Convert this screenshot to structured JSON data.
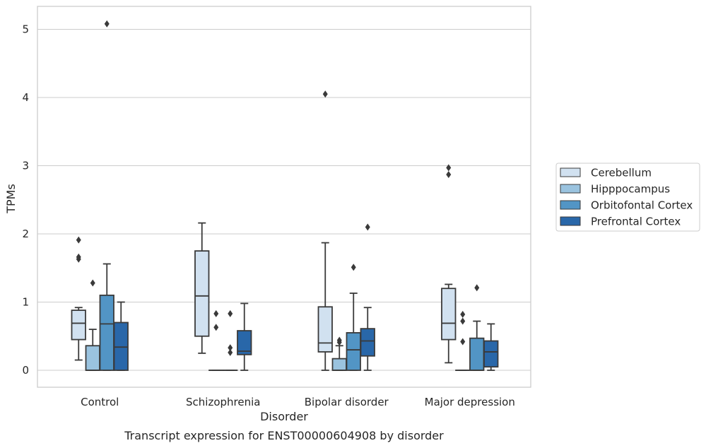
{
  "chart_data": {
    "type": "box",
    "title": "",
    "caption": "Transcript expression for ENST00000604908 by disorder",
    "xlabel": "Disorder",
    "ylabel": "TPMs",
    "ylim": [
      -0.25,
      5.35
    ],
    "yticks": [
      0,
      1,
      2,
      3,
      4,
      5
    ],
    "grid": "horizontal",
    "legend_position": "right",
    "categories": [
      "Control",
      "Schizophrenia",
      "Bipolar disorder",
      "Major depression"
    ],
    "series": [
      {
        "name": "Cerebellum",
        "color": "#d1e1f0",
        "boxes": [
          {
            "whislo": 0.15,
            "q1": 0.45,
            "med": 0.69,
            "q3": 0.88,
            "whishi": 0.92,
            "fliers": [
              1.63,
              1.66,
              1.91
            ]
          },
          {
            "whislo": 0.25,
            "q1": 0.5,
            "med": 1.09,
            "q3": 1.75,
            "whishi": 2.16,
            "fliers": []
          },
          {
            "whislo": 0.0,
            "q1": 0.27,
            "med": 0.4,
            "q3": 0.93,
            "whishi": 1.87,
            "fliers": [
              4.05
            ]
          },
          {
            "whislo": 0.11,
            "q1": 0.45,
            "med": 0.69,
            "q3": 1.2,
            "whishi": 1.26,
            "fliers": [
              2.87,
              2.97
            ]
          }
        ]
      },
      {
        "name": "Hipppocampus",
        "color": "#9ac3df",
        "boxes": [
          {
            "whislo": 0.0,
            "q1": 0.0,
            "med": 0.0,
            "q3": 0.36,
            "whishi": 0.6,
            "fliers": [
              1.28
            ]
          },
          {
            "whislo": 0.0,
            "q1": 0.0,
            "med": 0.0,
            "q3": 0.0,
            "whishi": 0.0,
            "fliers": [
              0.63,
              0.83
            ]
          },
          {
            "whislo": 0.0,
            "q1": 0.0,
            "med": 0.0,
            "q3": 0.17,
            "whishi": 0.36,
            "fliers": [
              0.41,
              0.44
            ]
          },
          {
            "whislo": 0.0,
            "q1": 0.0,
            "med": 0.0,
            "q3": 0.0,
            "whishi": 0.0,
            "fliers": [
              0.42,
              0.72,
              0.82
            ]
          }
        ]
      },
      {
        "name": "Orbitofontal Cortex",
        "color": "#5295c5",
        "boxes": [
          {
            "whislo": 0.0,
            "q1": 0.0,
            "med": 0.68,
            "q3": 1.1,
            "whishi": 1.56,
            "fliers": [
              5.08
            ]
          },
          {
            "whislo": 0.0,
            "q1": 0.0,
            "med": 0.0,
            "q3": 0.0,
            "whishi": 0.0,
            "fliers": [
              0.26,
              0.33,
              0.83
            ]
          },
          {
            "whislo": 0.0,
            "q1": 0.0,
            "med": 0.3,
            "q3": 0.55,
            "whishi": 1.13,
            "fliers": [
              1.51
            ]
          },
          {
            "whislo": 0.0,
            "q1": 0.0,
            "med": 0.0,
            "q3": 0.47,
            "whishi": 0.72,
            "fliers": [
              1.21
            ]
          }
        ]
      },
      {
        "name": "Prefrontal Cortex",
        "color": "#2967a9",
        "boxes": [
          {
            "whislo": 0.0,
            "q1": 0.0,
            "med": 0.34,
            "q3": 0.7,
            "whishi": 1.0,
            "fliers": []
          },
          {
            "whislo": 0.0,
            "q1": 0.23,
            "med": 0.28,
            "q3": 0.58,
            "whishi": 0.98,
            "fliers": []
          },
          {
            "whislo": 0.0,
            "q1": 0.21,
            "med": 0.43,
            "q3": 0.61,
            "whishi": 0.92,
            "fliers": [
              2.1
            ]
          },
          {
            "whislo": 0.0,
            "q1": 0.05,
            "med": 0.27,
            "q3": 0.43,
            "whishi": 0.68,
            "fliers": []
          }
        ]
      }
    ]
  }
}
